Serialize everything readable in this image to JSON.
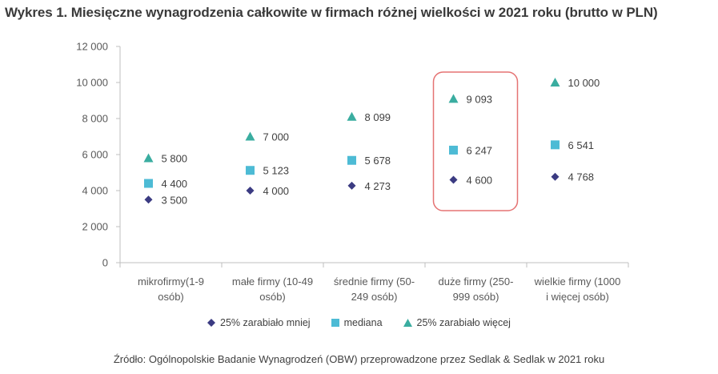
{
  "title": "Wykres 1. Miesięczne wynagrodzenia całkowite w firmach różnej wielkości w 2021 roku (brutto w PLN)",
  "source": "Źródło: Ogólnopolskie Badanie Wynagrodzeń (OBW) przeprowadzone przez Sedlak & Sedlak w 2021 roku",
  "colors": {
    "low": "#3b3b82",
    "median": "#4dbbd5",
    "high": "#3aada0",
    "highlight": "#e57373",
    "axis": "#bfbfbf"
  },
  "chart_data": {
    "type": "scatter",
    "categories": [
      [
        "mikrofirmy(1-9",
        "osób)"
      ],
      [
        "małe firmy (10-49",
        "osób)"
      ],
      [
        "średnie firmy (50-",
        "249 osób)"
      ],
      [
        "duże firmy (250-",
        "999 osób)"
      ],
      [
        "wielkie firmy (1000",
        "i więcej osób)"
      ]
    ],
    "series": [
      {
        "name": "25% zarabiało mniej",
        "marker": "diamond",
        "values": [
          3500,
          4000,
          4273,
          4600,
          4768
        ],
        "labels": [
          "3 500",
          "4 000",
          "4 273",
          "4 600",
          "4 768"
        ]
      },
      {
        "name": "mediana",
        "marker": "square",
        "values": [
          4400,
          5123,
          5678,
          6247,
          6541
        ],
        "labels": [
          "4 400",
          "5 123",
          "5 678",
          "6 247",
          "6 541"
        ]
      },
      {
        "name": "25% zarabiało więcej",
        "marker": "triangle",
        "values": [
          5800,
          7000,
          8099,
          9093,
          10000
        ],
        "labels": [
          "5 800",
          "7 000",
          "8 099",
          "9 093",
          "10 000"
        ]
      }
    ],
    "ylim": [
      0,
      12000
    ],
    "yticks": [
      0,
      2000,
      4000,
      6000,
      8000,
      10000,
      12000
    ],
    "ytick_labels": [
      "0",
      "2 000",
      "4 000",
      "6 000",
      "8 000",
      "10 000",
      "12 000"
    ],
    "highlighted_category_index": 3,
    "grid": false,
    "legend_position": "bottom"
  }
}
